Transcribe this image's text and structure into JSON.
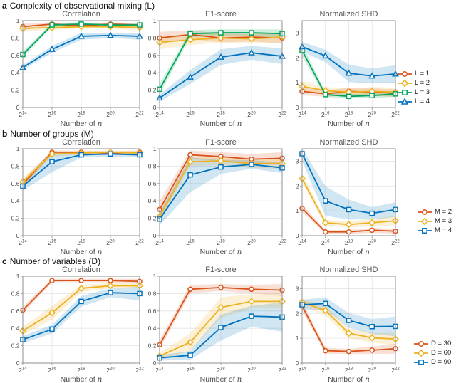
{
  "chart_data": {
    "type": "line",
    "x_axis": {
      "label": "Number of",
      "variable": "n",
      "tick_labels": [
        "2^14",
        "2^16",
        "2^18",
        "2^20",
        "2^22"
      ]
    },
    "grid": true,
    "legend_position": "right",
    "colors": {
      "orange": "#d95319",
      "yellow": "#edb120",
      "green": "#00a65a",
      "blue": "#0072bd"
    },
    "rows": [
      {
        "panel_label": "a",
        "panel_title": "Complexity of observational mixing (L)",
        "legend": [
          {
            "label": "L = 1",
            "color": "#d95319",
            "marker": "circle"
          },
          {
            "label": "L = 2",
            "color": "#edb120",
            "marker": "diamond"
          },
          {
            "label": "L = 3",
            "color": "#00a65a",
            "marker": "square"
          },
          {
            "label": "L = 4",
            "color": "#0072bd",
            "marker": "triangle"
          }
        ],
        "charts": [
          {
            "title": "Correlation",
            "ylim": [
              0,
              1
            ],
            "yticks": [
              0,
              0.2,
              0.4,
              0.6,
              0.8,
              1
            ],
            "series": [
              {
                "name": "L = 1",
                "color": "#d95319",
                "marker": "circle",
                "values": [
                  0.93,
                  0.96,
                  0.94,
                  0.96,
                  0.95
                ],
                "band": [
                  0.04,
                  0.02,
                  0.02,
                  0.02,
                  0.02
                ]
              },
              {
                "name": "L = 2",
                "color": "#edb120",
                "marker": "diamond",
                "values": [
                  0.91,
                  0.92,
                  0.93,
                  0.93,
                  0.92
                ],
                "band": [
                  0.03,
                  0.03,
                  0.02,
                  0.02,
                  0.03
                ]
              },
              {
                "name": "L = 3",
                "color": "#00a65a",
                "marker": "square",
                "values": [
                  0.61,
                  0.95,
                  0.96,
                  0.95,
                  0.95
                ],
                "band": [
                  0.04,
                  0.02,
                  0.02,
                  0.02,
                  0.02
                ]
              },
              {
                "name": "L = 4",
                "color": "#0072bd",
                "marker": "triangle",
                "values": [
                  0.46,
                  0.67,
                  0.82,
                  0.83,
                  0.82
                ],
                "band": [
                  0.03,
                  0.04,
                  0.04,
                  0.03,
                  0.04
                ]
              }
            ]
          },
          {
            "title": "F1-score",
            "ylim": [
              0,
              1
            ],
            "yticks": [
              0,
              0.2,
              0.4,
              0.6,
              0.8,
              1
            ],
            "series": [
              {
                "name": "L = 1",
                "color": "#d95319",
                "marker": "circle",
                "values": [
                  0.8,
                  0.84,
                  0.8,
                  0.81,
                  0.8
                ],
                "band": [
                  0.07,
                  0.05,
                  0.05,
                  0.05,
                  0.06
                ]
              },
              {
                "name": "L = 2",
                "color": "#edb120",
                "marker": "diamond",
                "values": [
                  0.75,
                  0.78,
                  0.8,
                  0.79,
                  0.81
                ],
                "band": [
                  0.08,
                  0.06,
                  0.05,
                  0.05,
                  0.06
                ]
              },
              {
                "name": "L = 3",
                "color": "#00a65a",
                "marker": "square",
                "values": [
                  0.21,
                  0.85,
                  0.86,
                  0.86,
                  0.85
                ],
                "band": [
                  0.06,
                  0.04,
                  0.04,
                  0.04,
                  0.05
                ]
              },
              {
                "name": "L = 4",
                "color": "#0072bd",
                "marker": "triangle",
                "values": [
                  0.11,
                  0.35,
                  0.58,
                  0.63,
                  0.59
                ],
                "band": [
                  0.04,
                  0.08,
                  0.09,
                  0.08,
                  0.09
                ]
              }
            ]
          },
          {
            "title": "Normalized SHD",
            "ylim": [
              0,
              3.5
            ],
            "yticks": [
              0,
              1,
              2,
              3
            ],
            "series": [
              {
                "name": "L = 1",
                "color": "#d95319",
                "marker": "circle",
                "values": [
                  0.65,
                  0.55,
                  0.65,
                  0.62,
                  0.58
                ],
                "band": [
                  0.15,
                  0.12,
                  0.15,
                  0.15,
                  0.15
                ]
              },
              {
                "name": "L = 2",
                "color": "#edb120",
                "marker": "diamond",
                "values": [
                  0.85,
                  0.68,
                  0.62,
                  0.65,
                  0.62
                ],
                "band": [
                  0.2,
                  0.15,
                  0.15,
                  0.18,
                  0.18
                ]
              },
              {
                "name": "L = 3",
                "color": "#00a65a",
                "marker": "square",
                "values": [
                  2.3,
                  0.52,
                  0.45,
                  0.48,
                  0.55
                ],
                "band": [
                  0.25,
                  0.1,
                  0.08,
                  0.1,
                  0.12
                ]
              },
              {
                "name": "L = 4",
                "color": "#0072bd",
                "marker": "triangle",
                "values": [
                  2.45,
                  2.08,
                  1.38,
                  1.27,
                  1.35
                ],
                "band": [
                  0.2,
                  0.25,
                  0.35,
                  0.3,
                  0.35
                ]
              }
            ]
          }
        ]
      },
      {
        "panel_label": "b",
        "panel_title": "Number of groups (M)",
        "legend": [
          {
            "label": "M = 2",
            "color": "#d95319",
            "marker": "circle"
          },
          {
            "label": "M = 3",
            "color": "#edb120",
            "marker": "diamond"
          },
          {
            "label": "M = 4",
            "color": "#0072bd",
            "marker": "square"
          }
        ],
        "charts": [
          {
            "title": "Correlation",
            "ylim": [
              0,
              1
            ],
            "yticks": [
              0,
              0.2,
              0.4,
              0.6,
              0.8,
              1
            ],
            "series": [
              {
                "name": "M = 2",
                "color": "#d95319",
                "marker": "circle",
                "values": [
                  0.59,
                  0.96,
                  0.96,
                  0.95,
                  0.96
                ],
                "band": [
                  0.05,
                  0.02,
                  0.02,
                  0.02,
                  0.02
                ]
              },
              {
                "name": "M = 3",
                "color": "#edb120",
                "marker": "diamond",
                "values": [
                  0.62,
                  0.94,
                  0.95,
                  0.96,
                  0.95
                ],
                "band": [
                  0.05,
                  0.03,
                  0.02,
                  0.02,
                  0.02
                ]
              },
              {
                "name": "M = 4",
                "color": "#0072bd",
                "marker": "square",
                "values": [
                  0.57,
                  0.85,
                  0.93,
                  0.94,
                  0.93
                ],
                "band": [
                  0.05,
                  0.12,
                  0.03,
                  0.03,
                  0.03
                ]
              }
            ]
          },
          {
            "title": "F1-score",
            "ylim": [
              0,
              1
            ],
            "yticks": [
              0,
              0.2,
              0.4,
              0.6,
              0.8,
              1
            ],
            "series": [
              {
                "name": "M = 2",
                "color": "#d95319",
                "marker": "circle",
                "values": [
                  0.3,
                  0.93,
                  0.91,
                  0.88,
                  0.89
                ],
                "band": [
                  0.1,
                  0.05,
                  0.05,
                  0.06,
                  0.07
                ]
              },
              {
                "name": "M = 3",
                "color": "#edb120",
                "marker": "diamond",
                "values": [
                  0.22,
                  0.85,
                  0.86,
                  0.83,
                  0.83
                ],
                "band": [
                  0.06,
                  0.05,
                  0.05,
                  0.05,
                  0.06
                ]
              },
              {
                "name": "M = 4",
                "color": "#0072bd",
                "marker": "square",
                "values": [
                  0.19,
                  0.7,
                  0.79,
                  0.82,
                  0.78
                ],
                "band": [
                  0.07,
                  0.2,
                  0.08,
                  0.05,
                  0.06
                ]
              }
            ]
          },
          {
            "title": "Normalized SHD",
            "ylim": [
              0,
              3.5
            ],
            "yticks": [
              0,
              1,
              2,
              3
            ],
            "series": [
              {
                "name": "M = 2",
                "color": "#d95319",
                "marker": "circle",
                "values": [
                  1.1,
                  0.15,
                  0.15,
                  0.22,
                  0.18
                ],
                "band": [
                  0.15,
                  0.08,
                  0.08,
                  0.1,
                  0.1
                ]
              },
              {
                "name": "M = 3",
                "color": "#edb120",
                "marker": "diamond",
                "values": [
                  2.3,
                  0.52,
                  0.45,
                  0.52,
                  0.6
                ],
                "band": [
                  0.2,
                  0.12,
                  0.12,
                  0.15,
                  0.2
                ]
              },
              {
                "name": "M = 4",
                "color": "#0072bd",
                "marker": "square",
                "values": [
                  3.3,
                  1.4,
                  1.05,
                  0.9,
                  1.05
                ],
                "band": [
                  0.3,
                  0.6,
                  0.4,
                  0.25,
                  0.3
                ]
              }
            ]
          }
        ]
      },
      {
        "panel_label": "c",
        "panel_title": "Number of variables (D)",
        "legend": [
          {
            "label": "D = 30",
            "color": "#d95319",
            "marker": "circle"
          },
          {
            "label": "D = 60",
            "color": "#edb120",
            "marker": "diamond"
          },
          {
            "label": "D = 90",
            "color": "#0072bd",
            "marker": "square"
          }
        ],
        "charts": [
          {
            "title": "Correlation",
            "ylim": [
              0,
              1
            ],
            "yticks": [
              0,
              0.2,
              0.4,
              0.6,
              0.8,
              1
            ],
            "series": [
              {
                "name": "D = 30",
                "color": "#d95319",
                "marker": "circle",
                "values": [
                  0.61,
                  0.95,
                  0.95,
                  0.95,
                  0.94
                ],
                "band": [
                  0.04,
                  0.02,
                  0.02,
                  0.02,
                  0.03
                ]
              },
              {
                "name": "D = 60",
                "color": "#edb120",
                "marker": "diamond",
                "values": [
                  0.37,
                  0.58,
                  0.86,
                  0.89,
                  0.89
                ],
                "band": [
                  0.05,
                  0.08,
                  0.04,
                  0.03,
                  0.03
                ]
              },
              {
                "name": "D = 90",
                "color": "#0072bd",
                "marker": "square",
                "values": [
                  0.27,
                  0.39,
                  0.71,
                  0.81,
                  0.8
                ],
                "band": [
                  0.04,
                  0.05,
                  0.06,
                  0.05,
                  0.08
                ]
              }
            ]
          },
          {
            "title": "F1-score",
            "ylim": [
              0,
              1
            ],
            "yticks": [
              0,
              0.2,
              0.4,
              0.6,
              0.8,
              1
            ],
            "series": [
              {
                "name": "D = 30",
                "color": "#d95319",
                "marker": "circle",
                "values": [
                  0.21,
                  0.85,
                  0.87,
                  0.85,
                  0.84
                ],
                "band": [
                  0.05,
                  0.05,
                  0.04,
                  0.05,
                  0.07
                ]
              },
              {
                "name": "D = 60",
                "color": "#edb120",
                "marker": "diamond",
                "values": [
                  0.08,
                  0.24,
                  0.64,
                  0.71,
                  0.71
                ],
                "band": [
                  0.04,
                  0.1,
                  0.12,
                  0.08,
                  0.08
                ]
              },
              {
                "name": "D = 90",
                "color": "#0072bd",
                "marker": "square",
                "values": [
                  0.06,
                  0.09,
                  0.41,
                  0.54,
                  0.53
                ],
                "band": [
                  0.03,
                  0.05,
                  0.15,
                  0.12,
                  0.17
                ]
              }
            ]
          },
          {
            "title": "Normalized SHD",
            "ylim": [
              0,
              3.5
            ],
            "yticks": [
              0,
              1,
              2,
              3
            ],
            "series": [
              {
                "name": "D = 30",
                "color": "#d95319",
                "marker": "circle",
                "values": [
                  2.3,
                  0.5,
                  0.47,
                  0.52,
                  0.58
                ],
                "band": [
                  0.2,
                  0.12,
                  0.1,
                  0.15,
                  0.2
                ]
              },
              {
                "name": "D = 60",
                "color": "#edb120",
                "marker": "diamond",
                "values": [
                  2.45,
                  2.12,
                  1.2,
                  1.02,
                  0.97
                ],
                "band": [
                  0.15,
                  0.2,
                  0.2,
                  0.2,
                  0.25
                ]
              },
              {
                "name": "D = 90",
                "color": "#0072bd",
                "marker": "square",
                "values": [
                  2.35,
                  2.4,
                  1.72,
                  1.47,
                  1.48
                ],
                "band": [
                  0.2,
                  0.25,
                  0.3,
                  0.3,
                  0.4
                ]
              }
            ]
          }
        ]
      }
    ]
  }
}
